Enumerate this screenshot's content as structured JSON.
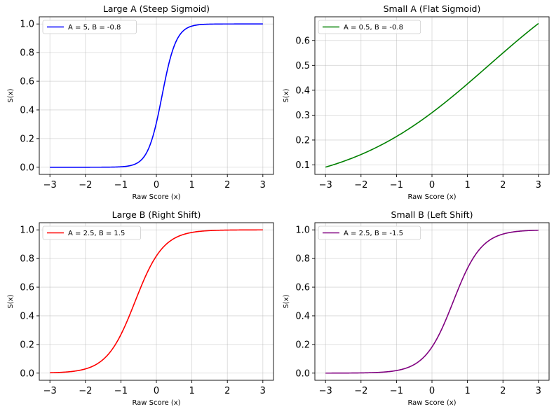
{
  "chart_data": [
    {
      "type": "line",
      "title": "Large A (Steep Sigmoid)",
      "xlabel": "Raw Score (x)",
      "ylabel": "S(x)",
      "xlim": [
        -3.3,
        3.3
      ],
      "ylim": [
        -0.05,
        1.05
      ],
      "xticks": [
        -3,
        -2,
        -1,
        0,
        1,
        2,
        3
      ],
      "yticks": [
        0.0,
        0.2,
        0.4,
        0.6,
        0.8,
        1.0
      ],
      "grid": true,
      "legend_position": "top-left",
      "series": [
        {
          "name": "A = 5, B = -0.8",
          "color": "#0000ff",
          "A": 5,
          "B": -0.8,
          "x_range": [
            -3,
            3
          ],
          "formula": "S(x) = 1 / (1 + exp(-(A*x + B)))"
        }
      ]
    },
    {
      "type": "line",
      "title": "Small A (Flat Sigmoid)",
      "xlabel": "Raw Score (x)",
      "ylabel": "S(x)",
      "xlim": [
        -3.3,
        3.3
      ],
      "ylim": [
        0.062,
        0.695
      ],
      "xticks": [
        -3,
        -2,
        -1,
        0,
        1,
        2,
        3
      ],
      "yticks": [
        0.1,
        0.2,
        0.3,
        0.4,
        0.5,
        0.6
      ],
      "grid": true,
      "legend_position": "top-left",
      "series": [
        {
          "name": "A = 0.5, B = -0.8",
          "color": "#008000",
          "A": 0.5,
          "B": -0.8,
          "x_range": [
            -3,
            3
          ],
          "formula": "S(x) = 1 / (1 + exp(-(A*x + B)))"
        }
      ]
    },
    {
      "type": "line",
      "title": "Large B (Right Shift)",
      "xlabel": "Raw Score (x)",
      "ylabel": "S(x)",
      "xlim": [
        -3.3,
        3.3
      ],
      "ylim": [
        -0.05,
        1.05
      ],
      "xticks": [
        -3,
        -2,
        -1,
        0,
        1,
        2,
        3
      ],
      "yticks": [
        0.0,
        0.2,
        0.4,
        0.6,
        0.8,
        1.0
      ],
      "grid": true,
      "legend_position": "top-left",
      "series": [
        {
          "name": "A = 2.5, B = 1.5",
          "color": "#ff0000",
          "A": 2.5,
          "B": 1.5,
          "x_range": [
            -3,
            3
          ],
          "formula": "S(x) = 1 / (1 + exp(-(A*x + B)))"
        }
      ]
    },
    {
      "type": "line",
      "title": "Small B (Left Shift)",
      "xlabel": "Raw Score (x)",
      "ylabel": "S(x)",
      "xlim": [
        -3.3,
        3.3
      ],
      "ylim": [
        -0.05,
        1.05
      ],
      "xticks": [
        -3,
        -2,
        -1,
        0,
        1,
        2,
        3
      ],
      "yticks": [
        0.0,
        0.2,
        0.4,
        0.6,
        0.8,
        1.0
      ],
      "grid": true,
      "legend_position": "top-left",
      "series": [
        {
          "name": "A = 2.5, B = -1.5",
          "color": "#800080",
          "A": 2.5,
          "B": -1.5,
          "x_range": [
            -3,
            3
          ],
          "formula": "S(x) = 1 / (1 + exp(-(A*x + B)))"
        }
      ]
    }
  ]
}
